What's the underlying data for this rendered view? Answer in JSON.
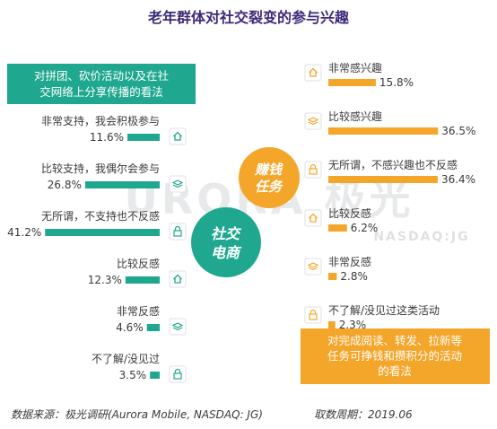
{
  "title": "老年群体对社交裂变的参与兴趣",
  "colors": {
    "left_accent": "#1fa88f",
    "right_accent": "#f4a62a",
    "title_color": "#3d2a7a",
    "text": "#3a3a3a"
  },
  "watermark": {
    "main": "URORA 极光",
    "sub": "NASDAQ:JG"
  },
  "center": {
    "left_label_1": "社交",
    "left_label_2": "电商",
    "right_label_1": "赚钱",
    "right_label_2": "任务"
  },
  "chart_data": [
    {
      "type": "bar",
      "title": "对拼团、砍价活动以及在社交网络上分享传播的看法",
      "title_lines": [
        "对拼团、砍价活动以及在社",
        "交网络上分享传播的看法"
      ],
      "categories": [
        "非常支持，我会积极参与",
        "比较支持，我偶尔会参与",
        "无所谓，不支持也不反感",
        "比较反感",
        "非常反感",
        "不了解/没见过"
      ],
      "values": [
        11.6,
        26.8,
        41.2,
        12.3,
        4.6,
        3.5
      ],
      "value_labels": [
        "11.6%",
        "26.8%",
        "41.2%",
        "12.3%",
        "4.6%",
        "3.5%"
      ],
      "icons": [
        "house-icon",
        "layers-icon",
        "lock-icon",
        "house-icon",
        "layers-icon",
        "lock-icon"
      ],
      "unit": "%",
      "color": "#1fa88f"
    },
    {
      "type": "bar",
      "title": "对完成阅读、转发、拉新等任务可挣钱和攒积分的活动的看法",
      "title_lines": [
        "对完成阅读、转发、拉新等",
        "任务可挣钱和攒积分的活动",
        "的看法"
      ],
      "categories": [
        "非常感兴趣",
        "比较感兴趣",
        "无所谓，不感兴趣也不反感",
        "比较反感",
        "非常反感",
        "不了解/没见过这类活动"
      ],
      "values": [
        15.8,
        36.5,
        36.4,
        6.2,
        2.8,
        2.3
      ],
      "value_labels": [
        "15.8%",
        "36.5%",
        "36.4%",
        "6.2%",
        "2.8%",
        "2.3%"
      ],
      "icons": [
        "house-icon",
        "layers-icon",
        "lock-icon",
        "house-icon",
        "layers-icon",
        "lock-icon"
      ],
      "unit": "%",
      "color": "#f4a62a"
    }
  ],
  "footer": {
    "source": "数据来源：极光调研(Aurora Mobile, NASDAQ: JG)",
    "period": "取数周期：2019.06"
  }
}
